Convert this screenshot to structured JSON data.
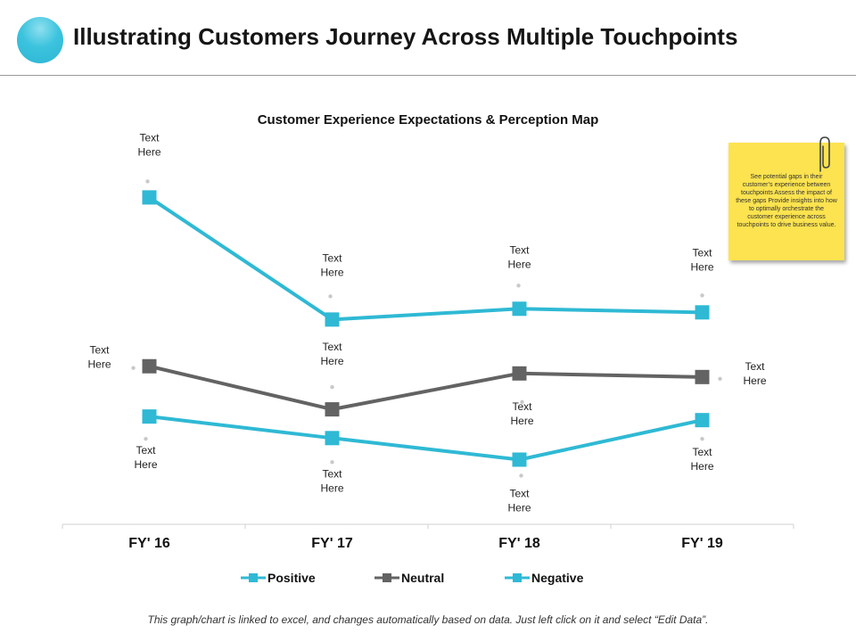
{
  "header": {
    "title": "Illustrating Customers Journey Across Multiple Touchpoints"
  },
  "colors": {
    "positive": "#2fb9d4",
    "neutral": "#636363",
    "negative": "#2fb9d4",
    "note": "#fce34f",
    "accent": "#3cc3de"
  },
  "icons": {
    "logo": "circle-logo-icon",
    "clip": "paperclip-icon"
  },
  "chart_data": {
    "type": "line",
    "title": "Customer Experience Expectations & Perception Map",
    "categories": [
      "FY' 16",
      "FY' 17",
      "FY' 18",
      "FY' 19"
    ],
    "series": [
      {
        "name": "Positive",
        "values": [
          8.7,
          5.3,
          5.6,
          5.5
        ],
        "labels": [
          "Text Here",
          "Text Here",
          "Text Here",
          "Text Here"
        ]
      },
      {
        "name": "Neutral",
        "values": [
          4.0,
          2.8,
          3.8,
          3.7
        ],
        "labels": [
          "Text Here",
          "Text Here",
          "Text Here",
          "Text Here"
        ]
      },
      {
        "name": "Negative",
        "values": [
          2.6,
          2.0,
          1.4,
          2.5
        ],
        "labels": [
          "Text Here",
          "Text Here",
          "Text Here",
          "Text Here"
        ]
      }
    ],
    "ylim": [
      -0.4,
      10.1
    ],
    "grid": false,
    "legend": "bottom"
  },
  "note": {
    "text": "See potential gaps in their customer’s experience between touchpoints Assess the impact of these gaps Provide insights into how to optimally orchestrate the customer experience across touchpoints to drive business value."
  },
  "footer": {
    "text": "This graph/chart is linked to excel, and changes automatically based on data. Just left click on it and select “Edit Data”."
  }
}
